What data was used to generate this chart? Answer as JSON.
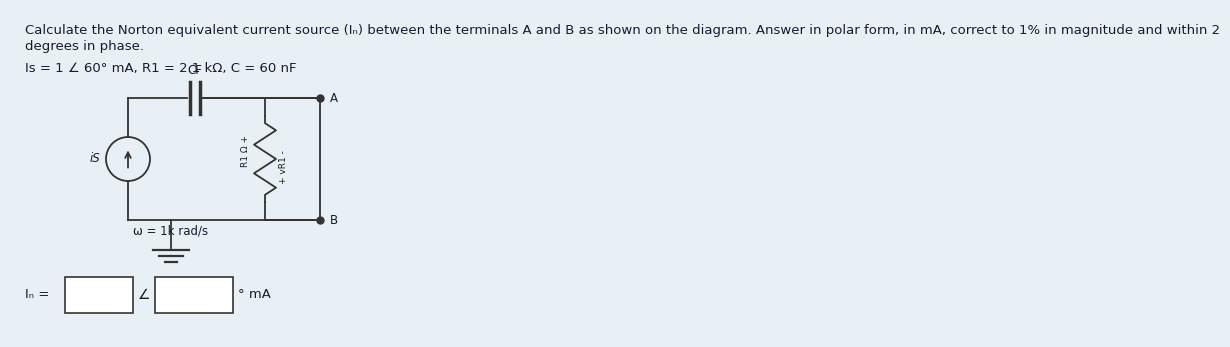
{
  "background_color": "#e8f0f5",
  "title_line1": "Calculate the Norton equivalent current source (Iₙ) between the terminals A and B as shown on the diagram. Answer in polar form, in mA, correct to 1% in magnitude and within 2",
  "title_line2": "degrees in phase.",
  "params_text": "Is = 1 ∠ 60° mA, R1 = 2.1 kΩ, C = 60 nF",
  "label_CF": "CF",
  "label_is": "iS",
  "label_omega": "ω = 1k rad/s",
  "label_A": "A",
  "label_B": "B",
  "label_R1": "R1 Ω +",
  "label_VR1": "+ vR1 -",
  "answer_label": "Iₙ =",
  "answer_unit": "° mA",
  "answer_angle": "∠",
  "font_size_title": 9.5,
  "font_size_params": 9.5,
  "font_size_circuit": 8.5,
  "font_size_answer": 9.5,
  "title_color": "#1a1a2e",
  "line_color": "#333333",
  "text_color": "#1a1a2e",
  "box_color": "#ffffff",
  "bg_color": "#e8f0f5"
}
